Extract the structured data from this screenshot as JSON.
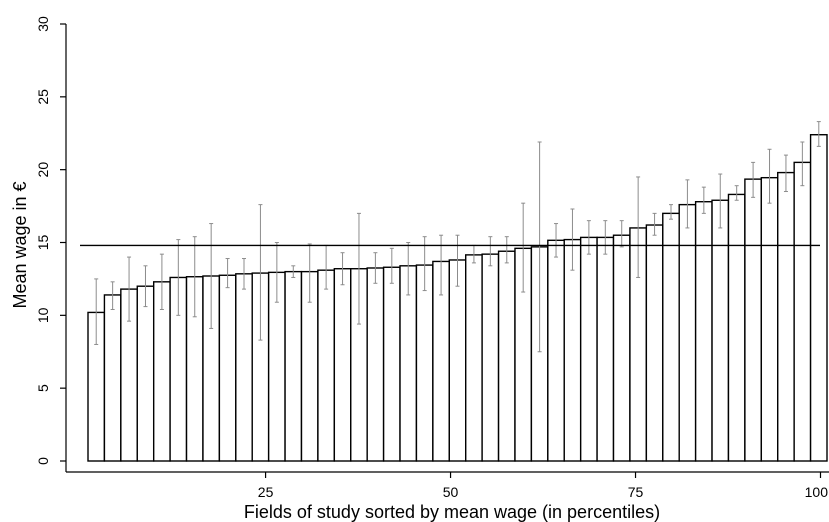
{
  "chart_data": {
    "type": "bar",
    "title": "",
    "xlabel": "Fields of study sorted by mean wage (in percentiles)",
    "ylabel": "Mean wage in €",
    "xlim": [
      0,
      100
    ],
    "ylim": [
      0,
      30
    ],
    "xticks": [
      "25",
      "50",
      "75",
      "100"
    ],
    "xtick_values": [
      25,
      50,
      75,
      100
    ],
    "yticks": [
      "0",
      "5",
      "10",
      "15",
      "20",
      "25",
      "30"
    ],
    "ytick_values": [
      0,
      5,
      10,
      15,
      20,
      25,
      30
    ],
    "reference_line": 14.8,
    "grid": false,
    "series": [
      {
        "values": [
          10.2,
          11.4,
          11.8,
          12.0,
          12.3,
          12.6,
          12.65,
          12.7,
          12.75,
          12.85,
          12.9,
          12.95,
          13.0,
          13.0,
          13.1,
          13.2,
          13.2,
          13.25,
          13.3,
          13.4,
          13.45,
          13.7,
          13.8,
          14.15,
          14.2,
          14.4,
          14.6,
          14.7,
          15.15,
          15.2,
          15.35,
          15.35,
          15.5,
          16.0,
          16.2,
          17.0,
          17.6,
          17.8,
          17.9,
          18.3,
          19.35,
          19.45,
          19.8,
          20.5,
          22.4
        ],
        "lower": [
          8.0,
          10.4,
          9.6,
          10.6,
          10.4,
          10.0,
          9.9,
          9.1,
          11.9,
          11.8,
          8.3,
          10.9,
          12.6,
          10.9,
          11.8,
          12.1,
          9.4,
          12.2,
          12.2,
          11.4,
          11.7,
          11.4,
          12.0,
          13.6,
          13.4,
          13.6,
          11.6,
          7.5,
          14.0,
          13.1,
          14.2,
          14.2,
          14.7,
          12.6,
          15.5,
          16.6,
          16.0,
          17.0,
          16.0,
          17.9,
          18.1,
          17.7,
          18.5,
          18.9,
          21.6
        ],
        "upper": [
          12.5,
          12.3,
          14.0,
          13.4,
          14.2,
          15.2,
          15.4,
          16.3,
          13.9,
          13.9,
          17.6,
          15.0,
          13.4,
          14.9,
          14.8,
          14.3,
          17.0,
          14.3,
          14.6,
          15.0,
          15.4,
          15.5,
          15.5,
          14.8,
          15.4,
          15.4,
          17.7,
          21.9,
          16.3,
          17.3,
          16.5,
          16.5,
          16.5,
          19.5,
          17.0,
          17.6,
          19.3,
          18.8,
          19.7,
          18.9,
          20.5,
          21.4,
          21.0,
          21.9,
          23.3
        ]
      }
    ]
  }
}
